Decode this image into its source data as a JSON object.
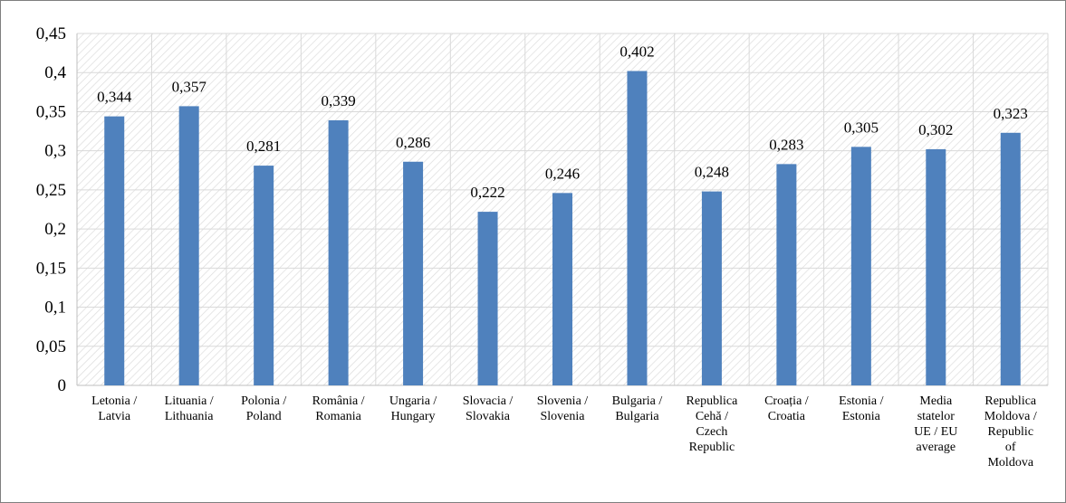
{
  "chart_data": {
    "type": "bar",
    "categories": [
      [
        "Letonia /",
        "Latvia"
      ],
      [
        "Lituania /",
        "Lithuania"
      ],
      [
        "Polonia /",
        "Poland"
      ],
      [
        "România /",
        "Romania"
      ],
      [
        "Ungaria /",
        "Hungary"
      ],
      [
        "Slovacia /",
        "Slovakia"
      ],
      [
        "Slovenia /",
        "Slovenia"
      ],
      [
        "Bulgaria /",
        "Bulgaria"
      ],
      [
        "Republica",
        "Cehă /",
        "Czech",
        "Republic"
      ],
      [
        "Croația /",
        "Croatia"
      ],
      [
        "Estonia /",
        "Estonia"
      ],
      [
        "Media",
        "statelor",
        "UE / EU",
        "average"
      ],
      [
        "Republica",
        "Moldova /",
        "Republic",
        "of",
        "Moldova"
      ]
    ],
    "values": [
      0.344,
      0.357,
      0.281,
      0.339,
      0.286,
      0.222,
      0.246,
      0.402,
      0.248,
      0.283,
      0.305,
      0.302,
      0.323
    ],
    "value_labels": [
      "0,344",
      "0,357",
      "0,281",
      "0,339",
      "0,286",
      "0,222",
      "0,246",
      "0,402",
      "0,248",
      "0,283",
      "0,305",
      "0,302",
      "0,323"
    ],
    "ylim": [
      0,
      0.45
    ],
    "yticks": [
      0,
      0.05,
      0.1,
      0.15,
      0.2,
      0.25,
      0.3,
      0.35,
      0.4,
      0.45
    ],
    "ytick_labels": [
      "0",
      "0,05",
      "0,1",
      "0,15",
      "0,2",
      "0,25",
      "0,3",
      "0,35",
      "0,4",
      "0,45"
    ],
    "grid": true,
    "plot_background": "hatched-diagonal",
    "bar_color": "#4f81bd",
    "grid_color": "#d9d9d9",
    "hatch_color": "#dcdcdc"
  }
}
